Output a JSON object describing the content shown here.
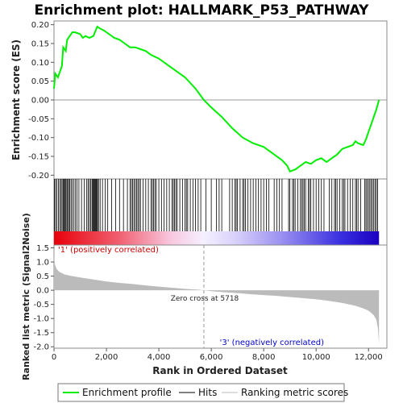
{
  "chart_data": {
    "type": "line",
    "title": "Enrichment plot: HALLMARK_P53_PATHWAY",
    "xlabel": "Rank in Ordered Dataset",
    "xlim": [
      0,
      12700
    ],
    "x_ticks": [
      0,
      2000,
      4000,
      6000,
      8000,
      10000,
      12000
    ],
    "x_tick_labels": [
      "0",
      "2,000",
      "4,000",
      "6,000",
      "8,000",
      "10,000",
      "12,000"
    ],
    "n_genes": 12400,
    "panels": {
      "es": {
        "ylabel": "Enrichment score (ES)",
        "ylim": [
          -0.21,
          0.21
        ],
        "y_ticks": [
          0.2,
          0.15,
          0.1,
          0.05,
          0.0,
          -0.05,
          -0.1,
          -0.15,
          -0.2
        ],
        "y_tick_labels": [
          "0.20",
          "0.15",
          "0.10",
          "0.05",
          "0.00",
          "-0.05",
          "-0.10",
          "-0.15",
          "-0.20"
        ]
      },
      "metric": {
        "ylabel": "Ranked list metric (Signal2Noise)",
        "ylim": [
          -2.05,
          1.6
        ],
        "y_ticks": [
          1.5,
          1.0,
          0.5,
          0.0,
          -0.5,
          -1.0,
          -1.5,
          -2.0
        ],
        "y_tick_labels": [
          "1.5",
          "1.0",
          "0.5",
          "0.0",
          "-0.5",
          "-1.0",
          "-1.5",
          "-2.0"
        ]
      }
    },
    "series": [
      {
        "name": "Enrichment profile",
        "color": "#00ee00",
        "x": [
          0,
          50,
          150,
          300,
          350,
          450,
          500,
          600,
          700,
          800,
          1000,
          1100,
          1200,
          1350,
          1500,
          1650,
          1750,
          1900,
          2100,
          2300,
          2500,
          2700,
          2900,
          3100,
          3300,
          3500,
          3700,
          4000,
          4300,
          4600,
          5000,
          5400,
          5718,
          6000,
          6400,
          6800,
          7200,
          7600,
          8000,
          8400,
          8700,
          8900,
          9000,
          9200,
          9400,
          9600,
          9800,
          10000,
          10200,
          10400,
          10600,
          10800,
          11000,
          11200,
          11400,
          11500,
          11600,
          11800,
          11900,
          12000,
          12100,
          12200,
          12300,
          12400
        ],
        "y": [
          0.03,
          0.07,
          0.06,
          0.09,
          0.14,
          0.13,
          0.16,
          0.17,
          0.18,
          0.18,
          0.175,
          0.165,
          0.17,
          0.165,
          0.17,
          0.195,
          0.19,
          0.185,
          0.175,
          0.165,
          0.16,
          0.15,
          0.14,
          0.14,
          0.135,
          0.13,
          0.12,
          0.11,
          0.095,
          0.08,
          0.06,
          0.03,
          0.0,
          -0.02,
          -0.045,
          -0.075,
          -0.1,
          -0.115,
          -0.125,
          -0.145,
          -0.16,
          -0.175,
          -0.19,
          -0.185,
          -0.175,
          -0.165,
          -0.17,
          -0.16,
          -0.155,
          -0.165,
          -0.155,
          -0.145,
          -0.13,
          -0.125,
          -0.12,
          -0.11,
          -0.115,
          -0.12,
          -0.105,
          -0.085,
          -0.065,
          -0.045,
          -0.025,
          0.0
        ]
      },
      {
        "name": "Hits",
        "color": "#000000",
        "hit_ranks": [
          20,
          60,
          110,
          170,
          220,
          270,
          310,
          350,
          380,
          410,
          450,
          490,
          520,
          560,
          600,
          650,
          700,
          760,
          820,
          880,
          950,
          1050,
          1150,
          1250,
          1300,
          1350,
          1400,
          1450,
          1480,
          1510,
          1540,
          1570,
          1600,
          1630,
          1660,
          1700,
          1760,
          1850,
          1950,
          2050,
          2200,
          2350,
          2500,
          2650,
          2800,
          2900,
          2950,
          3000,
          3050,
          3100,
          3150,
          3200,
          3250,
          3300,
          3400,
          3500,
          3600,
          3700,
          3750,
          3800,
          3850,
          3900,
          4000,
          4100,
          4200,
          4300,
          4400,
          4500,
          4550,
          4600,
          4650,
          4700,
          4800,
          4900,
          5000,
          5050,
          5100,
          5200,
          5300,
          5400,
          5500,
          5600,
          5800,
          6000,
          6200,
          6300,
          6400,
          6700,
          6800,
          6900,
          6950,
          7000,
          7100,
          7200,
          7250,
          7300,
          7400,
          7500,
          7600,
          7700,
          7800,
          7900,
          8000,
          8100,
          8200,
          8400,
          8500,
          8600,
          8700,
          8950,
          9000,
          9100,
          9150,
          9200,
          9300,
          9400,
          9450,
          9500,
          9550,
          9600,
          9700,
          9750,
          9800,
          9900,
          10000,
          10100,
          10200,
          10300,
          10500,
          10600,
          10700,
          10750,
          10800,
          10900,
          11000,
          11050,
          11100,
          11200,
          11300,
          11400,
          11500,
          11550,
          11600,
          11700,
          11850,
          11900,
          11950,
          12000,
          12050,
          12100,
          12150,
          12200,
          12250,
          12300,
          12350
        ]
      },
      {
        "name": "Ranking metric scores",
        "color": "#bbbbbb",
        "x": [
          0,
          10,
          40,
          100,
          200,
          400,
          700,
          1000,
          1500,
          2000,
          2500,
          3000,
          3500,
          4000,
          4500,
          5000,
          5500,
          5718,
          6000,
          6500,
          7000,
          7500,
          8000,
          8500,
          9000,
          9500,
          10000,
          10500,
          11000,
          11500,
          11800,
          12000,
          12200,
          12300,
          12360,
          12400
        ],
        "y": [
          1.52,
          1.1,
          0.9,
          0.75,
          0.65,
          0.56,
          0.5,
          0.45,
          0.38,
          0.31,
          0.26,
          0.22,
          0.17,
          0.13,
          0.09,
          0.05,
          0.02,
          0.0,
          -0.03,
          -0.07,
          -0.1,
          -0.14,
          -0.17,
          -0.2,
          -0.24,
          -0.28,
          -0.32,
          -0.38,
          -0.45,
          -0.55,
          -0.64,
          -0.72,
          -0.88,
          -1.05,
          -1.35,
          -1.9
        ]
      }
    ],
    "annotations": {
      "positive": "'1' (positively correlated)",
      "negative": "'3' (negatively correlated)",
      "zero_cross": "Zero cross at 5718",
      "zero_cross_rank": 5718
    },
    "legend": {
      "placement": "bottom",
      "items": [
        {
          "label": "Enrichment profile",
          "color": "#00ee00"
        },
        {
          "label": "Hits",
          "color": "#000000"
        },
        {
          "label": "Ranking metric scores",
          "color": "#bbbbbb"
        }
      ]
    }
  }
}
